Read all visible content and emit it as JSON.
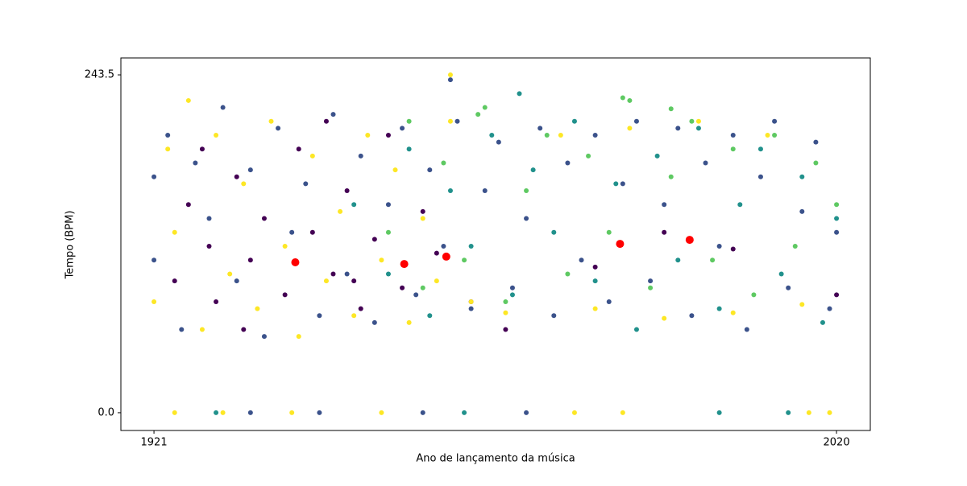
{
  "chart_data": {
    "type": "scatter",
    "xlabel": "Ano de lançamento da música",
    "ylabel": "Tempo (BPM)",
    "xlim": [
      1916.2,
      2024.9
    ],
    "ylim": [
      -12.8,
      255.7
    ],
    "xticks": [
      1921,
      2020
    ],
    "yticks": [
      {
        "value": 0,
        "label": "0.0"
      },
      243.5
    ],
    "series": [
      {
        "color": "#440154",
        "x": [
          1924,
          1926,
          1929,
          1930,
          1933,
          1935,
          1937,
          1940,
          1942,
          1944,
          1947,
          1949,
          1951,
          1953,
          1955,
          1957,
          1960,
          1962,
          1967,
          1972,
          1985,
          1995,
          2005,
          2020,
          1928,
          1934,
          1946,
          1950
        ],
        "values": [
          95,
          150,
          120,
          80,
          170,
          110,
          140,
          85,
          190,
          130,
          100,
          160,
          75,
          125,
          200,
          90,
          145,
          115,
          80,
          60,
          105,
          130,
          118,
          85,
          190,
          60,
          210,
          95
        ]
      },
      {
        "color": "#3b528b",
        "x": [
          1921,
          1921,
          1923,
          1925,
          1927,
          1929,
          1931,
          1933,
          1935,
          1937,
          1939,
          1941,
          1943,
          1945,
          1947,
          1949,
          1951,
          1953,
          1955,
          1957,
          1959,
          1961,
          1963,
          1965,
          1967,
          1969,
          1971,
          1973,
          1975,
          1977,
          1979,
          1981,
          1983,
          1985,
          1987,
          1989,
          1991,
          1993,
          1995,
          1997,
          1999,
          2001,
          2003,
          2005,
          2007,
          2009,
          2011,
          2013,
          2015,
          2017,
          2019,
          2020,
          1964,
          1935,
          1945,
          1960,
          1975
        ],
        "values": [
          170,
          110,
          200,
          60,
          180,
          140,
          220,
          95,
          175,
          55,
          205,
          130,
          165,
          70,
          215,
          100,
          185,
          65,
          150,
          205,
          85,
          175,
          120,
          210,
          75,
          160,
          195,
          90,
          140,
          205,
          70,
          180,
          110,
          200,
          80,
          165,
          210,
          95,
          150,
          205,
          70,
          180,
          120,
          200,
          60,
          170,
          210,
          90,
          145,
          195,
          75,
          130,
          240,
          0,
          0,
          0,
          0
        ]
      },
      {
        "color": "#21918c",
        "x": [
          1950,
          1955,
          1958,
          1961,
          1964,
          1967,
          1970,
          1973,
          1976,
          1979,
          1982,
          1985,
          1988,
          1991,
          1994,
          1997,
          2000,
          2003,
          2006,
          2009,
          2012,
          2015,
          2018,
          2020,
          1974,
          1930,
          1966,
          2003,
          2013
        ],
        "values": [
          150,
          100,
          190,
          70,
          160,
          120,
          200,
          85,
          175,
          130,
          210,
          95,
          165,
          60,
          185,
          110,
          205,
          75,
          150,
          190,
          100,
          170,
          65,
          140,
          230,
          0,
          0,
          0,
          0
        ]
      },
      {
        "color": "#5ec962",
        "x": [
          1955,
          1958,
          1960,
          1963,
          1966,
          1969,
          1972,
          1975,
          1978,
          1981,
          1984,
          1987,
          1990,
          1993,
          1996,
          1999,
          2002,
          2005,
          2008,
          2011,
          2014,
          2017,
          2020,
          1989,
          1996,
          1968
        ],
        "values": [
          130,
          210,
          90,
          180,
          110,
          220,
          80,
          160,
          200,
          100,
          185,
          130,
          225,
          90,
          170,
          210,
          110,
          190,
          85,
          200,
          120,
          180,
          150,
          227,
          219,
          215
        ]
      },
      {
        "color": "#fde725",
        "x": [
          1921,
          1923,
          1924,
          1926,
          1928,
          1930,
          1932,
          1934,
          1936,
          1938,
          1940,
          1942,
          1944,
          1946,
          1948,
          1950,
          1952,
          1954,
          1956,
          1958,
          1960,
          1962,
          1964,
          1967,
          1972,
          1980,
          1985,
          1990,
          1995,
          2000,
          2005,
          2010,
          2015,
          1964,
          1924,
          1931,
          1941,
          1954,
          1982,
          1989,
          2016,
          2019
        ],
        "values": [
          80,
          190,
          130,
          225,
          60,
          200,
          100,
          165,
          75,
          210,
          120,
          55,
          185,
          95,
          145,
          70,
          200,
          110,
          175,
          65,
          140,
          95,
          210,
          80,
          72,
          200,
          75,
          205,
          68,
          210,
          72,
          200,
          78,
          243.5,
          0,
          0,
          0,
          0,
          0,
          0,
          0,
          0
        ]
      },
      {
        "color": "#ff0000",
        "x": [
          1941.5,
          1957.3,
          1963.4,
          1988.6,
          1998.7
        ],
        "values": [
          108.4,
          107.2,
          112.5,
          121.7,
          124.6
        ]
      }
    ]
  }
}
